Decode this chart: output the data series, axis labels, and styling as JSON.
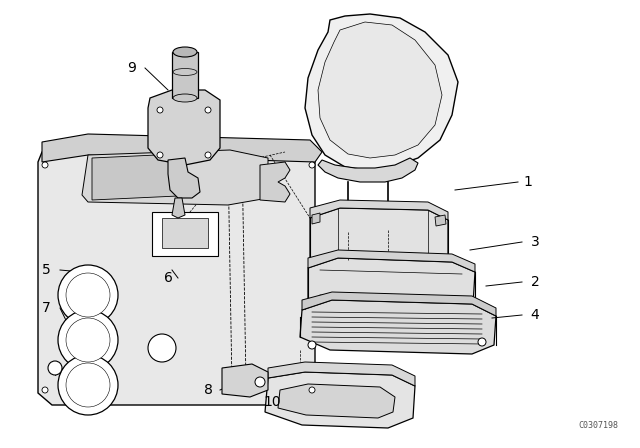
{
  "title": "",
  "background_color": "#ffffff",
  "line_color": "#000000",
  "label_color": "#000000",
  "diagram_code": "C0307198",
  "figsize": [
    6.4,
    4.48
  ],
  "dpi": 100
}
